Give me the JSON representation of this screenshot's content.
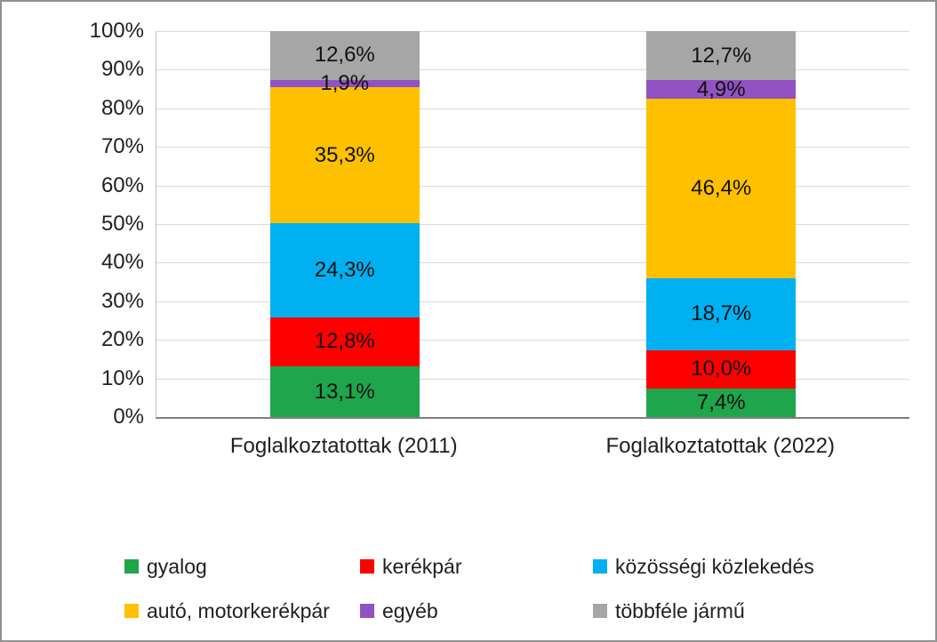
{
  "chart_data": {
    "type": "bar",
    "subtype": "stacked-100-percent",
    "title": "",
    "categories": [
      "Foglalkoztatottak (2011)",
      "Foglalkoztatottak (2022)"
    ],
    "series": [
      {
        "name": "gyalog",
        "color": "#1FA54C",
        "values": [
          13.1,
          7.4
        ],
        "data_labels": [
          "13,1%",
          "7,4%"
        ]
      },
      {
        "name": "kerékpár",
        "color": "#FF0000",
        "values": [
          12.8,
          10.0
        ],
        "data_labels": [
          "12,8%",
          "10,0%"
        ]
      },
      {
        "name": "közösségi közlekedés",
        "color": "#00B0F0",
        "values": [
          24.3,
          18.7
        ],
        "data_labels": [
          "24,3%",
          "18,7%"
        ]
      },
      {
        "name": "autó, motorkerékpár",
        "color": "#FFC000",
        "values": [
          35.3,
          46.4
        ],
        "data_labels": [
          "35,3%",
          "46,4%"
        ]
      },
      {
        "name": "egyéb",
        "color": "#9153C3",
        "values": [
          1.9,
          4.9
        ],
        "data_labels": [
          "1,9%",
          "4,9%"
        ]
      },
      {
        "name": "többféle jármű",
        "color": "#A6A6A6",
        "values": [
          12.6,
          12.7
        ],
        "data_labels": [
          "12,6%",
          "12,7%"
        ]
      }
    ],
    "y_axis": {
      "min": 0,
      "max": 100,
      "tick_step": 10,
      "tick_labels": [
        "0%",
        "10%",
        "20%",
        "30%",
        "40%",
        "50%",
        "60%",
        "70%",
        "80%",
        "90%",
        "100%"
      ]
    },
    "grid": "horizontal",
    "legend_position": "bottom"
  }
}
